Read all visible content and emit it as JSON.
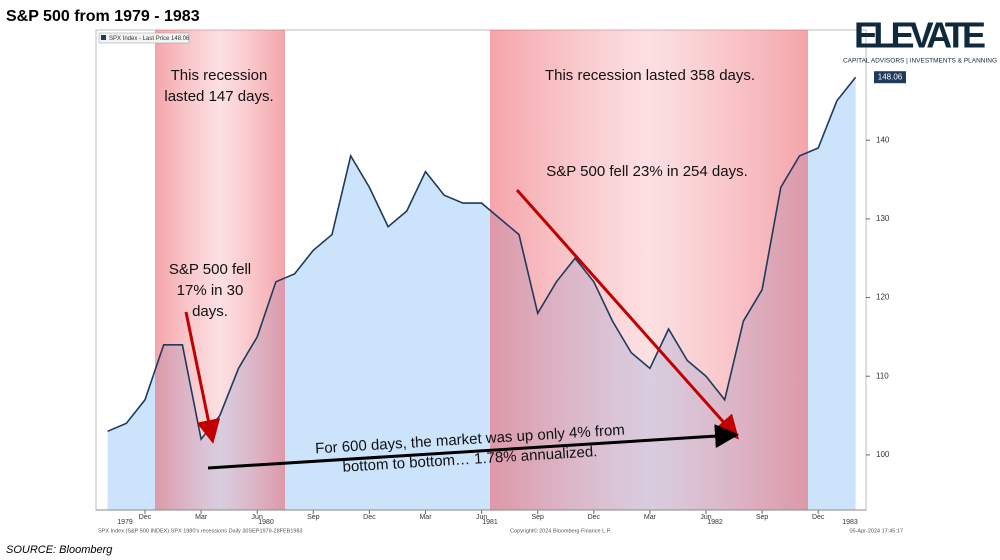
{
  "chart_data": {
    "type": "area",
    "title": "S&P 500 from 1979 - 1983",
    "source": "SOURCE: Bloomberg",
    "logo": {
      "name": "ELEVATE",
      "tagline": "CAPITAL ADVISORS | INVESTMENTS & PLANNING"
    },
    "categories": [
      null,
      null,
      "Dec",
      null,
      null,
      "Mar",
      null,
      null,
      "Jun",
      null,
      null,
      "Sep",
      null,
      null,
      "Dec",
      null,
      null,
      "Mar",
      null,
      null,
      "Jun",
      null,
      null,
      "Sep",
      null,
      null,
      "Dec",
      null,
      null,
      "Mar",
      null,
      null,
      "Jun",
      null,
      null,
      "Sep",
      null,
      null,
      "Dec",
      null,
      null
    ],
    "years": [
      "1979",
      "1980",
      "1981",
      "1982",
      "1983"
    ],
    "series": [
      {
        "name": "SPX Index - Last Price 148.06",
        "color": "#1f3b5c",
        "fill": "#cce4fb",
        "values": [
          103,
          104,
          107,
          114,
          114,
          102,
          105,
          111,
          115,
          122,
          123,
          126,
          128,
          138,
          134,
          129,
          131,
          136,
          133,
          132,
          132,
          130,
          128,
          118,
          122,
          125,
          122,
          117,
          113,
          111,
          116,
          112,
          110,
          107,
          117,
          121,
          134,
          138,
          139,
          145,
          148
        ]
      }
    ],
    "last_value_label": "148.06",
    "ylim": [
      93,
      154
    ],
    "yticks": [
      100,
      110,
      120,
      130,
      140
    ],
    "annotations": [
      {
        "lines": [
          "This recession",
          "lasted 147 days."
        ]
      },
      {
        "lines": [
          "This recession lasted 358 days."
        ]
      },
      {
        "lines": [
          "S&P 500 fell",
          "17% in 30",
          "days."
        ]
      },
      {
        "lines": [
          "S&P 500 fell 23% in 254 days."
        ]
      },
      {
        "lines": [
          "For 600 days, the market was up only 4% from",
          "bottom to bottom… 1.78% annualized."
        ]
      }
    ],
    "footer": {
      "left": "SPX Index (S&P 500 INDEX) SPX 1980's recessions Daily 30SEP1979-28FEB1983",
      "center": "Copyright© 2024 Bloomberg Finance L.P.",
      "right": "05-Apr-2024 17:45:17"
    }
  }
}
